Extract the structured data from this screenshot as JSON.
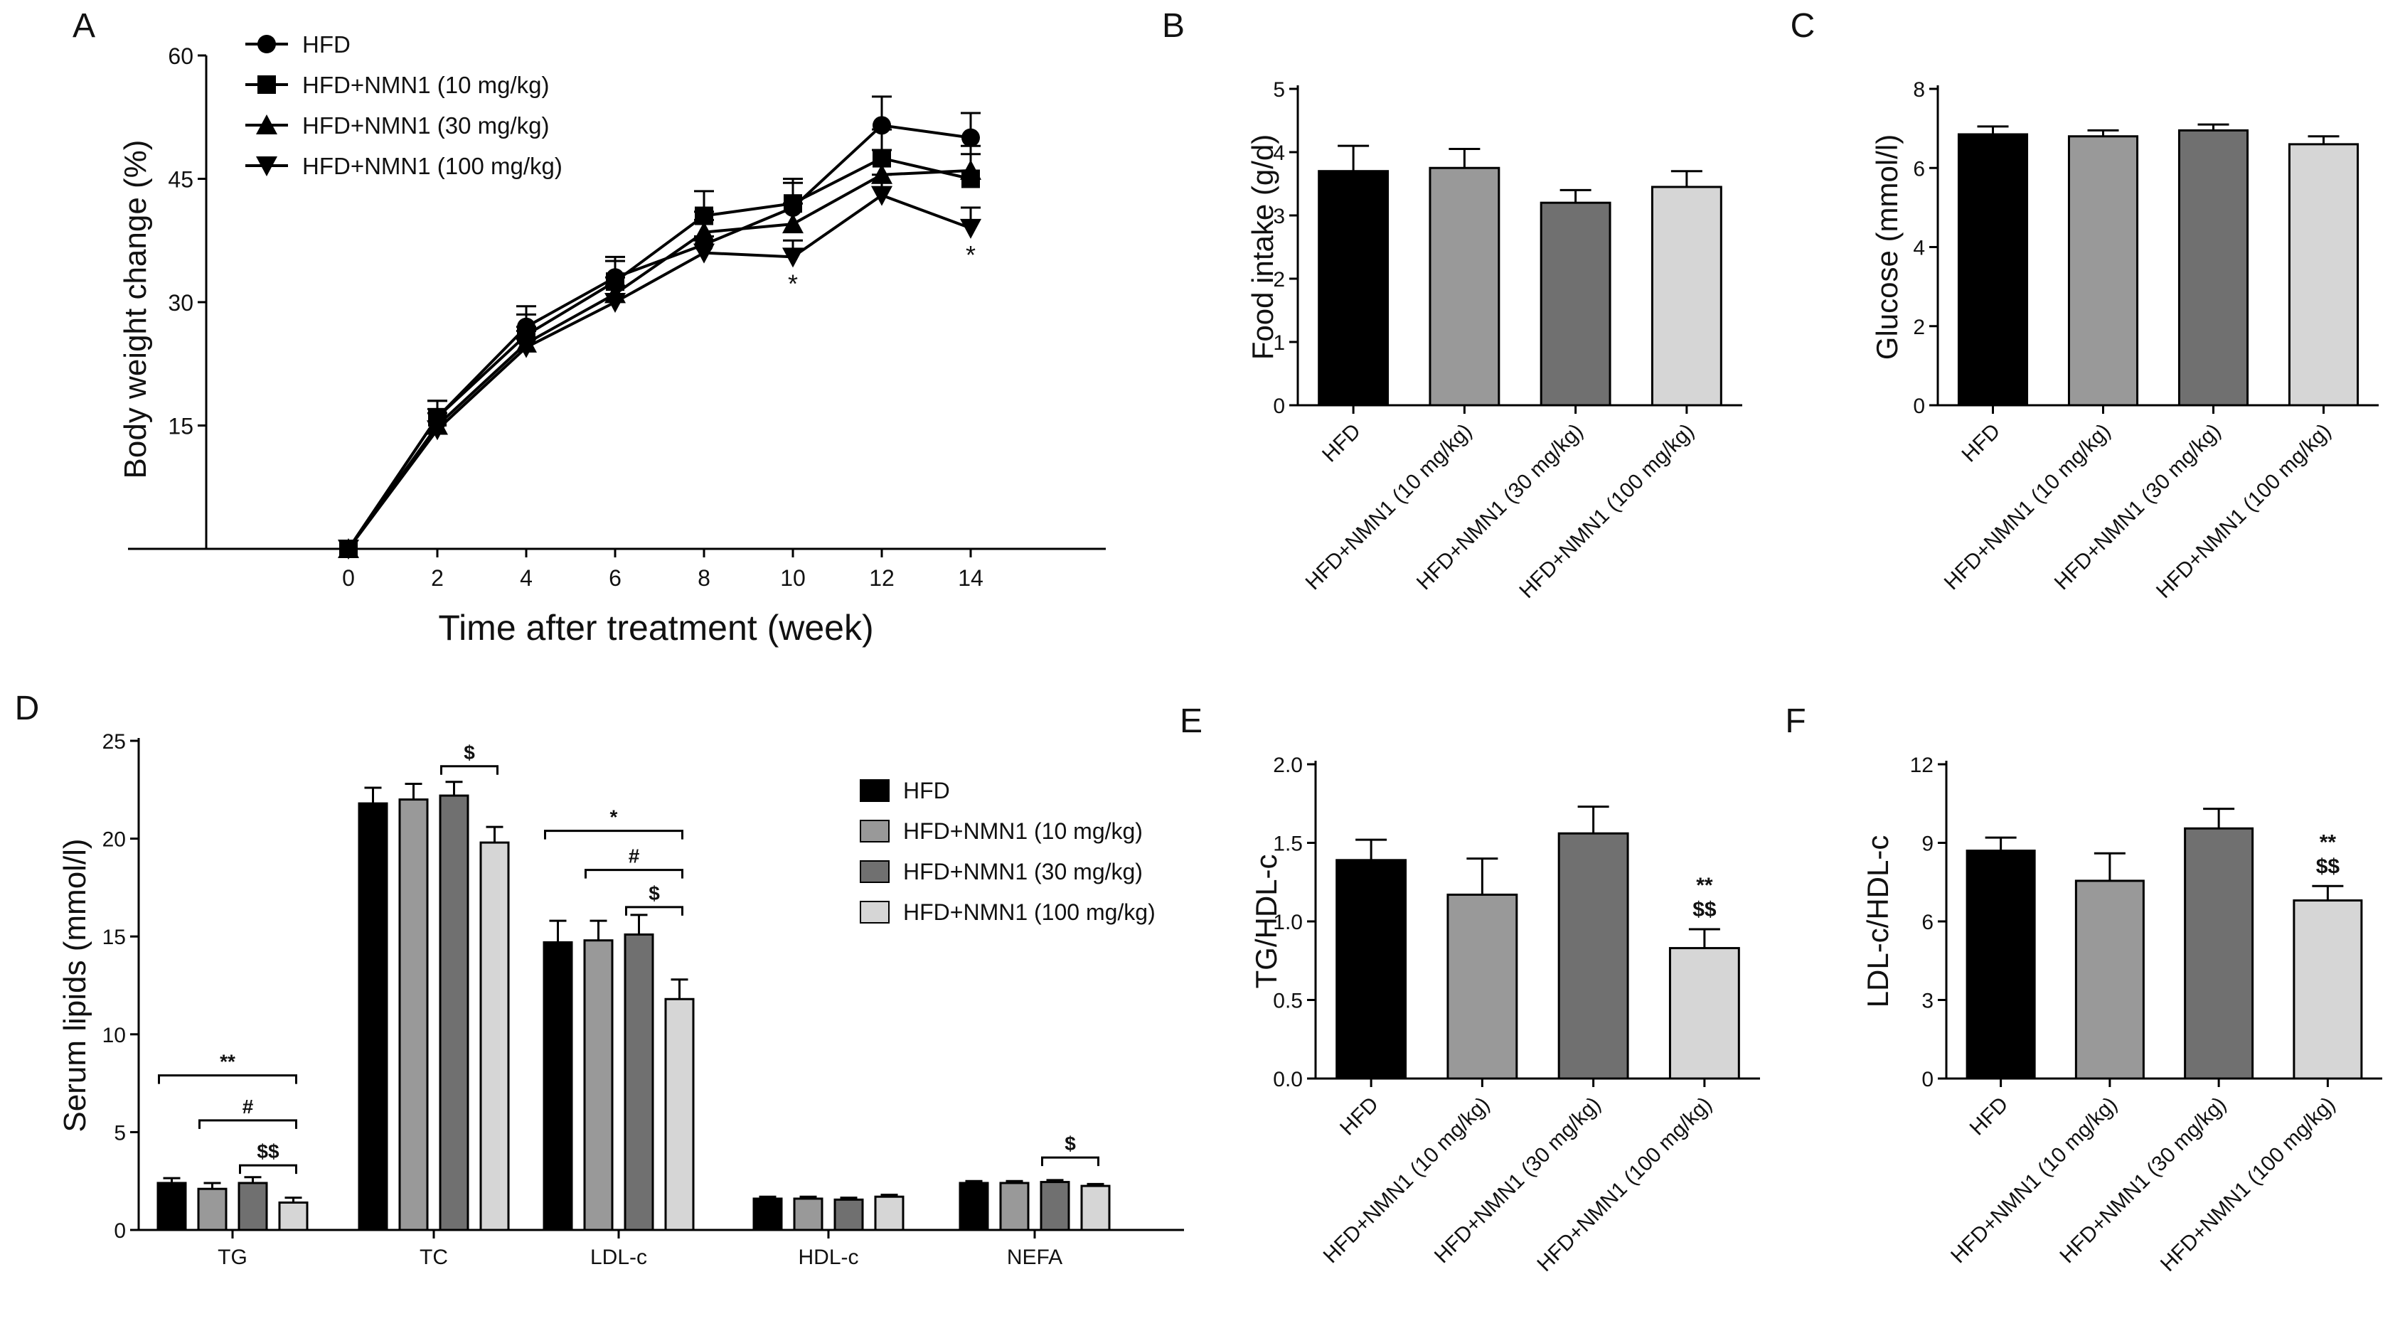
{
  "colors": {
    "HFD": "#000000",
    "HFD+NMN1 (10 mg/kg)": "#999999",
    "HFD+NMN1 (30 mg/kg)": "#707070",
    "HFD+NMN1 (100 mg/kg)": "#d6d6d6"
  },
  "chart_data": [
    {
      "panel": "A",
      "type": "line",
      "xlabel": "Time after treatment (week)",
      "ylabel": "Body weight change (%)",
      "x": [
        0,
        2,
        4,
        6,
        8,
        10,
        12,
        14
      ],
      "x_ticks": [
        "0",
        "2",
        "4",
        "6",
        "8",
        "10",
        "12",
        "14"
      ],
      "ylim": [
        0,
        60
      ],
      "y_ticks": [
        "15",
        "30",
        "45",
        "60"
      ],
      "series": [
        {
          "name": "HFD",
          "marker": "circle",
          "values": [
            0,
            16,
            27,
            33,
            37,
            41.5,
            51.5,
            50
          ],
          "errors": [
            0,
            2,
            2.5,
            2.5,
            3,
            3,
            3.5,
            3
          ]
        },
        {
          "name": "HFD+NMN1 (10 mg/kg)",
          "marker": "square",
          "values": [
            0,
            16,
            26,
            32.5,
            40.5,
            42,
            47.5,
            45
          ],
          "errors": [
            0,
            2,
            2.5,
            2.5,
            3,
            3,
            3.5,
            3
          ]
        },
        {
          "name": "HFD+NMN1 (30 mg/kg)",
          "marker": "triangle-up",
          "values": [
            0,
            15,
            25,
            31,
            38.5,
            39.5,
            45.5,
            46
          ],
          "errors": [
            0,
            2,
            2,
            2,
            2.5,
            2.5,
            3,
            3
          ]
        },
        {
          "name": "HFD+NMN1 (100 mg/kg)",
          "marker": "triangle-down",
          "values": [
            0,
            14.5,
            24.5,
            30,
            36,
            35.5,
            43,
            39
          ],
          "errors": [
            0,
            2,
            2,
            2,
            2,
            2,
            2.5,
            2.5
          ]
        }
      ],
      "annotations": [
        {
          "x": 10,
          "text": "*"
        },
        {
          "x": 14,
          "text": "*"
        }
      ],
      "legend": "top-left"
    },
    {
      "panel": "B",
      "type": "bar",
      "ylabel": "Food intake (g/d)",
      "categories": [
        "HFD",
        "HFD+NMN1 (10 mg/kg)",
        "HFD+NMN1 (30 mg/kg)",
        "HFD+NMN1 (100 mg/kg)"
      ],
      "values": [
        3.7,
        3.75,
        3.2,
        3.45
      ],
      "errors": [
        0.4,
        0.3,
        0.2,
        0.25
      ],
      "ylim": [
        0,
        5
      ],
      "y_ticks": [
        "0",
        "1",
        "2",
        "3",
        "4",
        "5"
      ]
    },
    {
      "panel": "C",
      "type": "bar",
      "ylabel": "Glucose (mmol/l)",
      "categories": [
        "HFD",
        "HFD+NMN1 (10 mg/kg)",
        "HFD+NMN1 (30 mg/kg)",
        "HFD+NMN1 (100 mg/kg)"
      ],
      "values": [
        6.85,
        6.8,
        6.95,
        6.6
      ],
      "errors": [
        0.2,
        0.15,
        0.15,
        0.2
      ],
      "ylim": [
        0,
        8
      ],
      "y_ticks": [
        "0",
        "2",
        "4",
        "6",
        "8"
      ]
    },
    {
      "panel": "D",
      "type": "bar",
      "ylabel": "Serum lipids (mmol/l)",
      "categories": [
        "TG",
        "TC",
        "LDL-c",
        "HDL-c",
        "NEFA"
      ],
      "series": [
        {
          "name": "HFD",
          "values": [
            2.4,
            21.8,
            14.7,
            1.6,
            2.4
          ],
          "errors": [
            0.25,
            0.8,
            1.1,
            0.1,
            0.1
          ]
        },
        {
          "name": "HFD+NMN1 (10 mg/kg)",
          "values": [
            2.1,
            22.0,
            14.8,
            1.6,
            2.4
          ],
          "errors": [
            0.3,
            0.8,
            1.0,
            0.1,
            0.1
          ]
        },
        {
          "name": "HFD+NMN1 (30 mg/kg)",
          "values": [
            2.4,
            22.2,
            15.1,
            1.55,
            2.45
          ],
          "errors": [
            0.3,
            0.7,
            1.0,
            0.1,
            0.1
          ]
        },
        {
          "name": "HFD+NMN1 (100 mg/kg)",
          "values": [
            1.4,
            19.8,
            11.8,
            1.7,
            2.25
          ],
          "errors": [
            0.25,
            0.8,
            1.0,
            0.1,
            0.1
          ]
        }
      ],
      "ylim": [
        0,
        25
      ],
      "y_ticks": [
        "0",
        "5",
        "10",
        "15",
        "20",
        "25"
      ],
      "brackets": [
        {
          "category": 0,
          "from": 0,
          "to": 3,
          "y": 7.9,
          "text": "**"
        },
        {
          "category": 0,
          "from": 1,
          "to": 3,
          "y": 5.6,
          "text": "#"
        },
        {
          "category": 0,
          "from": 2,
          "to": 3,
          "y": 3.3,
          "text": "$$"
        },
        {
          "category": 1,
          "from": 2,
          "to": 3,
          "y": 23.7,
          "text": "$"
        },
        {
          "category": 2,
          "from": 0,
          "to": 3,
          "y": 20.4,
          "text": "*"
        },
        {
          "category": 2,
          "from": 1,
          "to": 3,
          "y": 18.4,
          "text": "#"
        },
        {
          "category": 2,
          "from": 2,
          "to": 3,
          "y": 16.5,
          "text": "$"
        },
        {
          "category": 4,
          "from": 2,
          "to": 3,
          "y": 3.7,
          "text": "$"
        }
      ],
      "legend": "right"
    },
    {
      "panel": "E",
      "type": "bar",
      "ylabel": "TG/HDL-c",
      "categories": [
        "HFD",
        "HFD+NMN1 (10 mg/kg)",
        "HFD+NMN1 (30 mg/kg)",
        "HFD+NMN1 (100 mg/kg)"
      ],
      "values": [
        1.39,
        1.17,
        1.56,
        0.83
      ],
      "errors": [
        0.13,
        0.23,
        0.17,
        0.12
      ],
      "ylim": [
        0,
        2.0
      ],
      "y_ticks": [
        "0.0",
        "0.5",
        "1.0",
        "1.5",
        "2.0"
      ],
      "annotations": [
        {
          "category": 3,
          "lines": [
            "**",
            "$$"
          ]
        }
      ]
    },
    {
      "panel": "F",
      "type": "bar",
      "ylabel": "LDL-c/HDL-c",
      "categories": [
        "HFD",
        "HFD+NMN1 (10 mg/kg)",
        "HFD+NMN1 (30 mg/kg)",
        "HFD+NMN1 (100 mg/kg)"
      ],
      "values": [
        8.7,
        7.55,
        9.55,
        6.8
      ],
      "errors": [
        0.5,
        1.05,
        0.75,
        0.55
      ],
      "ylim": [
        0,
        12
      ],
      "y_ticks": [
        "0",
        "3",
        "6",
        "9",
        "12"
      ],
      "annotations": [
        {
          "category": 3,
          "lines": [
            "**",
            "$$"
          ]
        }
      ]
    }
  ]
}
